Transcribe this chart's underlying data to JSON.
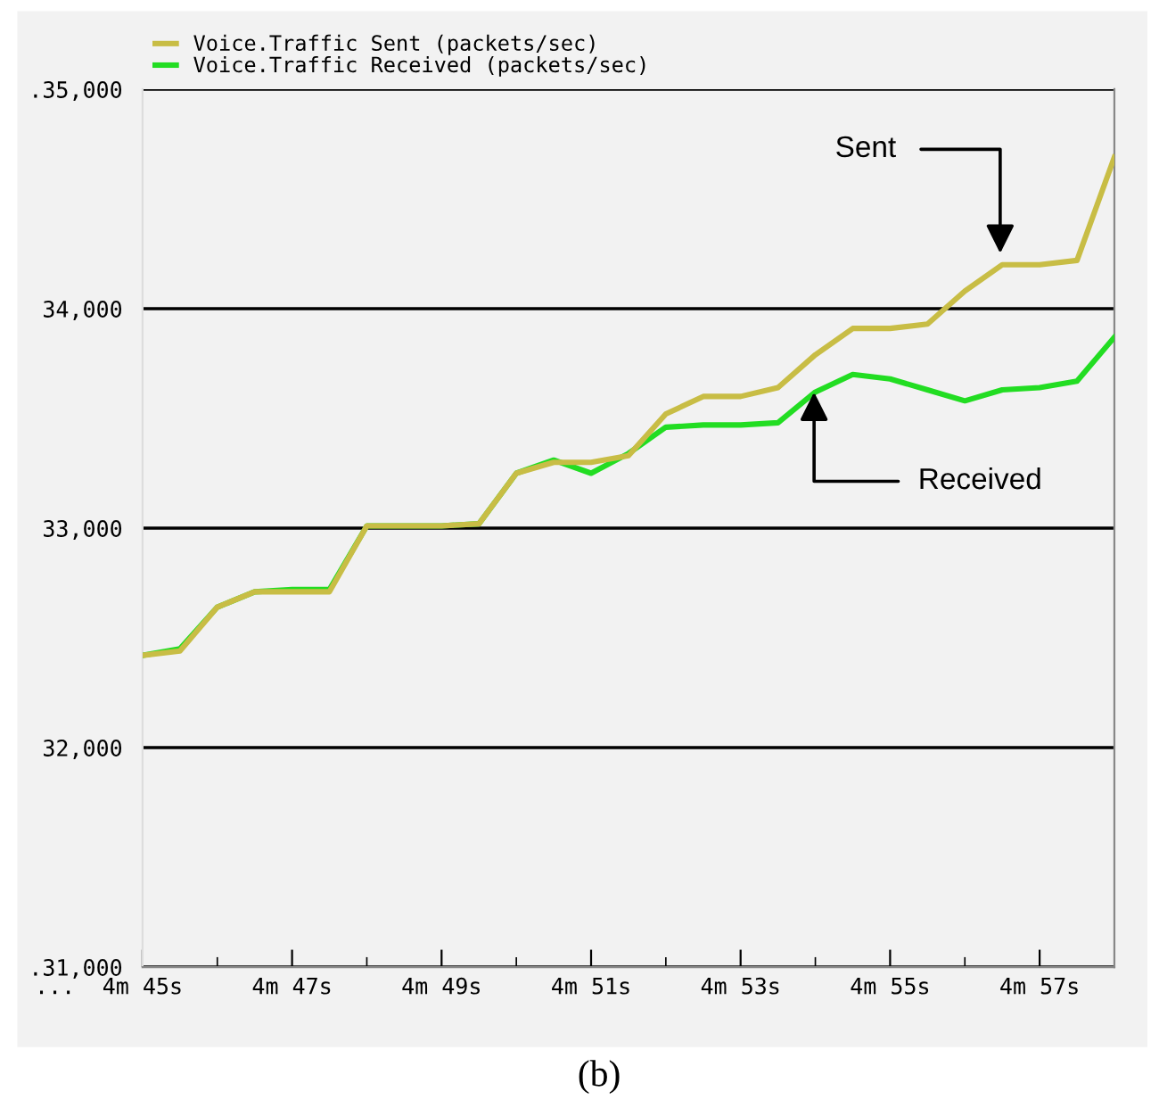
{
  "chart_data": {
    "type": "line",
    "legend": "top left",
    "grid": "y",
    "line_style": "solid",
    "marker": "none",
    "ylim": [
      31000,
      35000
    ],
    "yticks": [
      {
        "value": 31000,
        "label": ".31,000"
      },
      {
        "value": 32000,
        "label": "32,000"
      },
      {
        "value": 33000,
        "label": "33,000"
      },
      {
        "value": 34000,
        "label": "34,000"
      },
      {
        "value": 35000,
        "label": ".35,000"
      }
    ],
    "categories": [
      "4m 45s",
      null,
      null,
      null,
      "4m 47s",
      null,
      null,
      null,
      "4m 49s",
      null,
      null,
      null,
      "4m 51s",
      null,
      null,
      null,
      "4m 53s",
      null,
      null,
      null,
      "4m 55s",
      null,
      null,
      null,
      "4m 57s",
      null,
      null
    ],
    "series": [
      {
        "name": "Voice.Traffic Received (packets/sec)",
        "color": "#22dd22",
        "values": [
          32420,
          32450,
          32640,
          32710,
          32720,
          32720,
          33010,
          33010,
          33010,
          33020,
          33250,
          33310,
          33250,
          33340,
          33460,
          33470,
          33470,
          33480,
          33620,
          33700,
          33680,
          33630,
          33580,
          33630,
          33640,
          33670,
          33870
        ]
      },
      {
        "name": "Voice.Traffic Sent (packets/sec)",
        "color": "#c8bd45",
        "values": [
          32420,
          32440,
          32640,
          32710,
          32710,
          32710,
          33010,
          33010,
          33010,
          33020,
          33250,
          33300,
          33300,
          33330,
          33520,
          33600,
          33600,
          33640,
          33790,
          33910,
          33910,
          33930,
          34080,
          34200,
          34200,
          34220,
          34690
        ]
      }
    ],
    "annotations": [
      "Sent",
      {
        "text": "Received",
        "y": 33620
      },
      "...",
      "(b)"
    ]
  }
}
